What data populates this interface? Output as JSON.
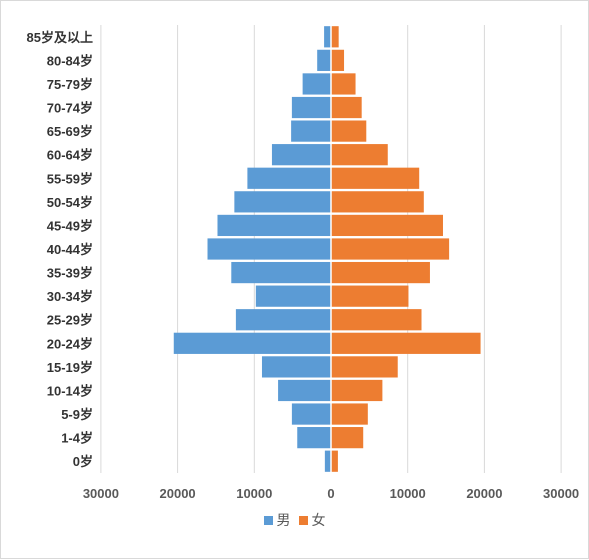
{
  "chart_data": {
    "type": "bar",
    "orientation": "horizontal",
    "subtype": "population-pyramid",
    "categories": [
      "0岁",
      "1-4岁",
      "5-9岁",
      "10-14岁",
      "15-19岁",
      "20-24岁",
      "25-29岁",
      "30-34岁",
      "35-39岁",
      "40-44岁",
      "45-49岁",
      "50-54岁",
      "55-59岁",
      "60-64岁",
      "65-69岁",
      "70-74岁",
      "75-79岁",
      "80-84岁",
      "85岁及以上"
    ],
    "series": [
      {
        "name": "男",
        "color": "#5b9bd5",
        "values": [
          800,
          4400,
          5100,
          6900,
          9000,
          20500,
          12400,
          9800,
          13000,
          16100,
          14800,
          12600,
          10900,
          7700,
          5200,
          5100,
          3700,
          1800,
          900
        ]
      },
      {
        "name": "女",
        "color": "#ed7d31",
        "values": [
          900,
          4200,
          4800,
          6700,
          8700,
          19500,
          11800,
          10100,
          12900,
          15400,
          14600,
          12100,
          11500,
          7400,
          4600,
          4000,
          3200,
          1700,
          1000
        ]
      }
    ],
    "x_ticks": [
      "30000",
      "20000",
      "10000",
      "0",
      "10000",
      "20000",
      "30000"
    ],
    "xlim": [
      -30000,
      30000
    ],
    "grid": true,
    "legend_position": "bottom"
  }
}
